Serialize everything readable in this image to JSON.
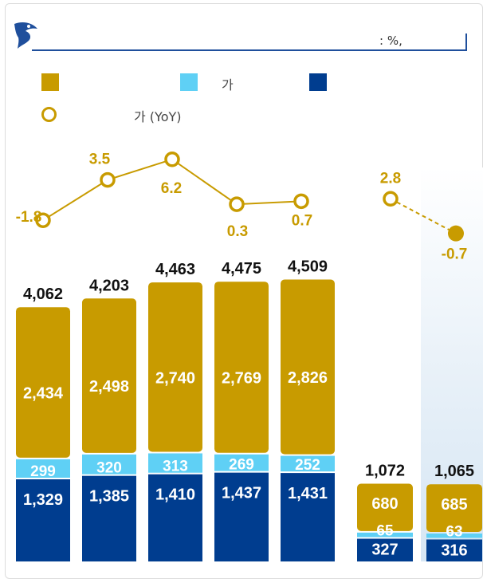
{
  "header": {
    "unit": ": %,"
  },
  "legend": {
    "items": [
      {
        "label": "",
        "color": "#c89b00",
        "kind": "square"
      },
      {
        "label": "가",
        "color": "#5fd0f5",
        "kind": "square"
      },
      {
        "label": "",
        "color": "#003d8f",
        "kind": "square"
      },
      {
        "label": "가  (YoY)",
        "color": "#c89b00",
        "kind": "circle"
      }
    ]
  },
  "chart_data": {
    "type": "bar",
    "stacked": true,
    "categories": [
      "",
      "",
      "",
      "",
      "",
      "",
      ""
    ],
    "series": [
      {
        "color": "#003d8f",
        "values": [
          1329,
          1385,
          1410,
          1437,
          1431,
          327,
          316
        ]
      },
      {
        "color": "#5fd0f5",
        "values": [
          299,
          320,
          313,
          269,
          252,
          65,
          63
        ]
      },
      {
        "color": "#c89b00",
        "values": [
          2434,
          2498,
          2740,
          2769,
          2826,
          680,
          685
        ]
      }
    ],
    "totals": [
      4062,
      4203,
      4463,
      4475,
      4509,
      1072,
      1065
    ],
    "value_labels": {
      "bottom": [
        "1,329",
        "1,385",
        "1,410",
        "1,437",
        "1,431",
        "327",
        "316"
      ],
      "middle": [
        "299",
        "320",
        "313",
        "269",
        "252",
        "65",
        "63"
      ],
      "top": [
        "2,434",
        "2,498",
        "2,740",
        "2,769",
        "2,826",
        "680",
        "685"
      ],
      "totals": [
        "4,062",
        "4,203",
        "4,463",
        "4,475",
        "4,509",
        "1,072",
        "1,065"
      ]
    },
    "yoy": {
      "annual": [
        -1.8,
        3.5,
        6.2,
        0.3,
        0.7
      ],
      "annual_labels": [
        "-1.8",
        "3.5",
        "6.2",
        "0.3",
        "0.7"
      ],
      "quarterly": [
        2.8,
        -0.7
      ],
      "quarterly_labels": [
        "2.8",
        "-0.7"
      ],
      "color": "#c89b00"
    }
  }
}
